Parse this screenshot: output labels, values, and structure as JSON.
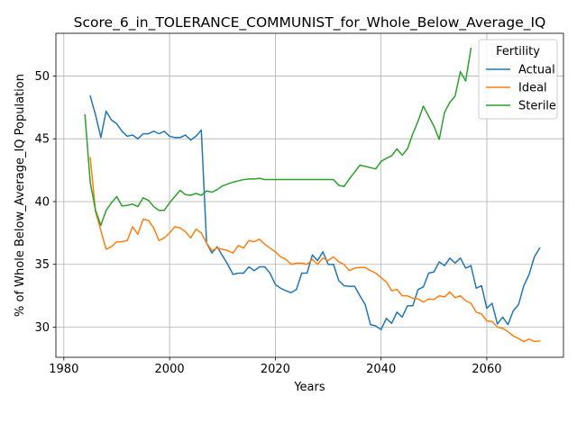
{
  "chart_data": {
    "type": "line",
    "title": "Score_6_in_TOLERANCE_COMMUNIST_for_Whole_Below_Average_IQ",
    "xlabel": "Years",
    "ylabel": "% of Whole Below_Average_IQ Population",
    "xlim": [
      1978.5,
      2074.5
    ],
    "ylim": [
      27.6,
      53.4
    ],
    "xticks": [
      1980,
      2000,
      2020,
      2040,
      2060
    ],
    "yticks": [
      30,
      35,
      40,
      45,
      50
    ],
    "grid": true,
    "legend": {
      "title": "Fertility",
      "position": "top-right"
    },
    "series": [
      {
        "name": "Actual",
        "color": "#1f77b4",
        "x": [
          1985,
          1986,
          1987,
          1988,
          1989,
          1990,
          1991,
          1992,
          1993,
          1994,
          1995,
          1996,
          1997,
          1998,
          1999,
          2000,
          2001,
          2002,
          2003,
          2004,
          2005,
          2006,
          2007,
          2008,
          2009,
          2010,
          2011,
          2012,
          2013,
          2014,
          2015,
          2016,
          2017,
          2018,
          2019,
          2020,
          2021,
          2022,
          2023,
          2024,
          2025,
          2026,
          2027,
          2028,
          2029,
          2030,
          2031,
          2032,
          2033,
          2034,
          2035,
          2036,
          2037,
          2038,
          2039,
          2040,
          2041,
          2042,
          2043,
          2044,
          2045,
          2046,
          2047,
          2048,
          2049,
          2050,
          2051,
          2052,
          2053,
          2054,
          2055,
          2056,
          2057,
          2058,
          2059,
          2060,
          2061,
          2062,
          2063,
          2064,
          2065,
          2066,
          2067,
          2068,
          2069,
          2070
        ],
        "values": [
          48.4,
          46.9,
          45.1,
          47.2,
          46.5,
          46.2,
          45.6,
          45.2,
          45.3,
          45.0,
          45.4,
          45.4,
          45.6,
          45.4,
          45.6,
          45.2,
          45.1,
          45.1,
          45.3,
          44.9,
          45.2,
          45.7,
          36.7,
          35.9,
          36.4,
          35.7,
          35.0,
          34.2,
          34.3,
          34.3,
          34.8,
          34.5,
          34.8,
          34.8,
          34.3,
          33.4,
          33.1,
          32.9,
          32.75,
          33.0,
          34.3,
          34.3,
          35.75,
          35.3,
          36.0,
          35.0,
          35.0,
          33.7,
          33.3,
          33.25,
          33.25,
          32.5,
          31.8,
          30.2,
          30.1,
          29.8,
          30.7,
          30.3,
          31.2,
          30.8,
          31.7,
          31.7,
          33.0,
          33.2,
          34.3,
          34.4,
          35.2,
          34.9,
          35.5,
          35.1,
          35.5,
          34.7,
          34.9,
          33.1,
          33.3,
          31.5,
          31.9,
          30.25,
          30.8,
          30.2,
          31.3,
          31.8,
          33.3,
          34.2,
          35.6,
          36.3
        ]
      },
      {
        "name": "Ideal",
        "color": "#ff7f0e",
        "x": [
          1985,
          1986,
          1987,
          1988,
          1989,
          1990,
          1991,
          1992,
          1993,
          1994,
          1995,
          1996,
          1997,
          1998,
          1999,
          2000,
          2001,
          2002,
          2003,
          2004,
          2005,
          2006,
          2007,
          2008,
          2009,
          2010,
          2011,
          2012,
          2013,
          2014,
          2015,
          2016,
          2017,
          2018,
          2019,
          2020,
          2021,
          2022,
          2023,
          2024,
          2025,
          2026,
          2027,
          2028,
          2029,
          2030,
          2031,
          2032,
          2033,
          2034,
          2035,
          2036,
          2037,
          2038,
          2039,
          2040,
          2041,
          2042,
          2043,
          2044,
          2045,
          2046,
          2047,
          2048,
          2049,
          2050,
          2051,
          2052,
          2053,
          2054,
          2055,
          2056,
          2057,
          2058,
          2059,
          2060,
          2061,
          2062,
          2063,
          2064,
          2065,
          2066,
          2067,
          2068,
          2069,
          2070
        ],
        "values": [
          43.5,
          39.2,
          37.7,
          36.2,
          36.4,
          36.8,
          36.8,
          36.9,
          38.0,
          37.4,
          38.6,
          38.5,
          37.9,
          36.9,
          37.1,
          37.5,
          38.0,
          37.9,
          37.6,
          37.1,
          37.8,
          37.5,
          36.7,
          36.1,
          36.3,
          36.2,
          36.1,
          35.9,
          36.5,
          36.3,
          36.9,
          36.8,
          37.0,
          36.6,
          36.3,
          36.0,
          35.6,
          35.4,
          35.0,
          35.1,
          35.1,
          35.0,
          35.4,
          35.0,
          35.5,
          35.3,
          35.6,
          35.2,
          35.0,
          34.5,
          34.7,
          34.75,
          34.75,
          34.5,
          34.3,
          33.95,
          33.6,
          32.9,
          33.0,
          32.5,
          32.5,
          32.3,
          32.25,
          32.0,
          32.25,
          32.2,
          32.5,
          32.4,
          32.8,
          32.35,
          32.5,
          32.1,
          31.9,
          31.2,
          31.05,
          30.5,
          30.45,
          30.0,
          29.9,
          29.65,
          29.3,
          29.1,
          28.85,
          29.05,
          28.85,
          28.9
        ]
      },
      {
        "name": "Sterile",
        "color": "#2ca02c",
        "x": [
          1984,
          1985,
          1986,
          1987,
          1988,
          1989,
          1990,
          1991,
          1992,
          1993,
          1994,
          1995,
          1996,
          1997,
          1998,
          1999,
          2000,
          2001,
          2002,
          2003,
          2004,
          2005,
          2006,
          2007,
          2008,
          2009,
          2010,
          2011,
          2012,
          2013,
          2014,
          2015,
          2016,
          2017,
          2018,
          2019,
          2020,
          2021,
          2022,
          2023,
          2024,
          2025,
          2026,
          2027,
          2028,
          2029,
          2030,
          2031,
          2032,
          2033,
          2034,
          2035,
          2036,
          2037,
          2038,
          2039,
          2040,
          2041,
          2042,
          2043,
          2044,
          2045,
          2046,
          2047,
          2048,
          2049,
          2050,
          2051,
          2052,
          2053,
          2054,
          2055,
          2056,
          2057
        ],
        "values": [
          46.9,
          41.5,
          39.3,
          38.1,
          39.3,
          39.9,
          40.4,
          39.65,
          39.7,
          39.8,
          39.6,
          40.3,
          40.1,
          39.6,
          39.3,
          39.3,
          39.9,
          40.4,
          40.9,
          40.55,
          40.5,
          40.65,
          40.5,
          40.85,
          40.75,
          40.95,
          41.25,
          41.4,
          41.55,
          41.65,
          41.75,
          41.8,
          41.8,
          41.85,
          41.75,
          41.75,
          41.75,
          41.75,
          41.75,
          41.75,
          41.75,
          41.75,
          41.75,
          41.75,
          41.75,
          41.75,
          41.75,
          41.75,
          41.3,
          41.2,
          41.8,
          42.35,
          42.9,
          42.8,
          42.7,
          42.6,
          43.2,
          43.45,
          43.65,
          44.2,
          43.7,
          44.2,
          45.4,
          46.4,
          47.6,
          46.8,
          46.0,
          44.95,
          47.1,
          47.9,
          48.4,
          50.35,
          49.6,
          52.2
        ]
      }
    ]
  }
}
